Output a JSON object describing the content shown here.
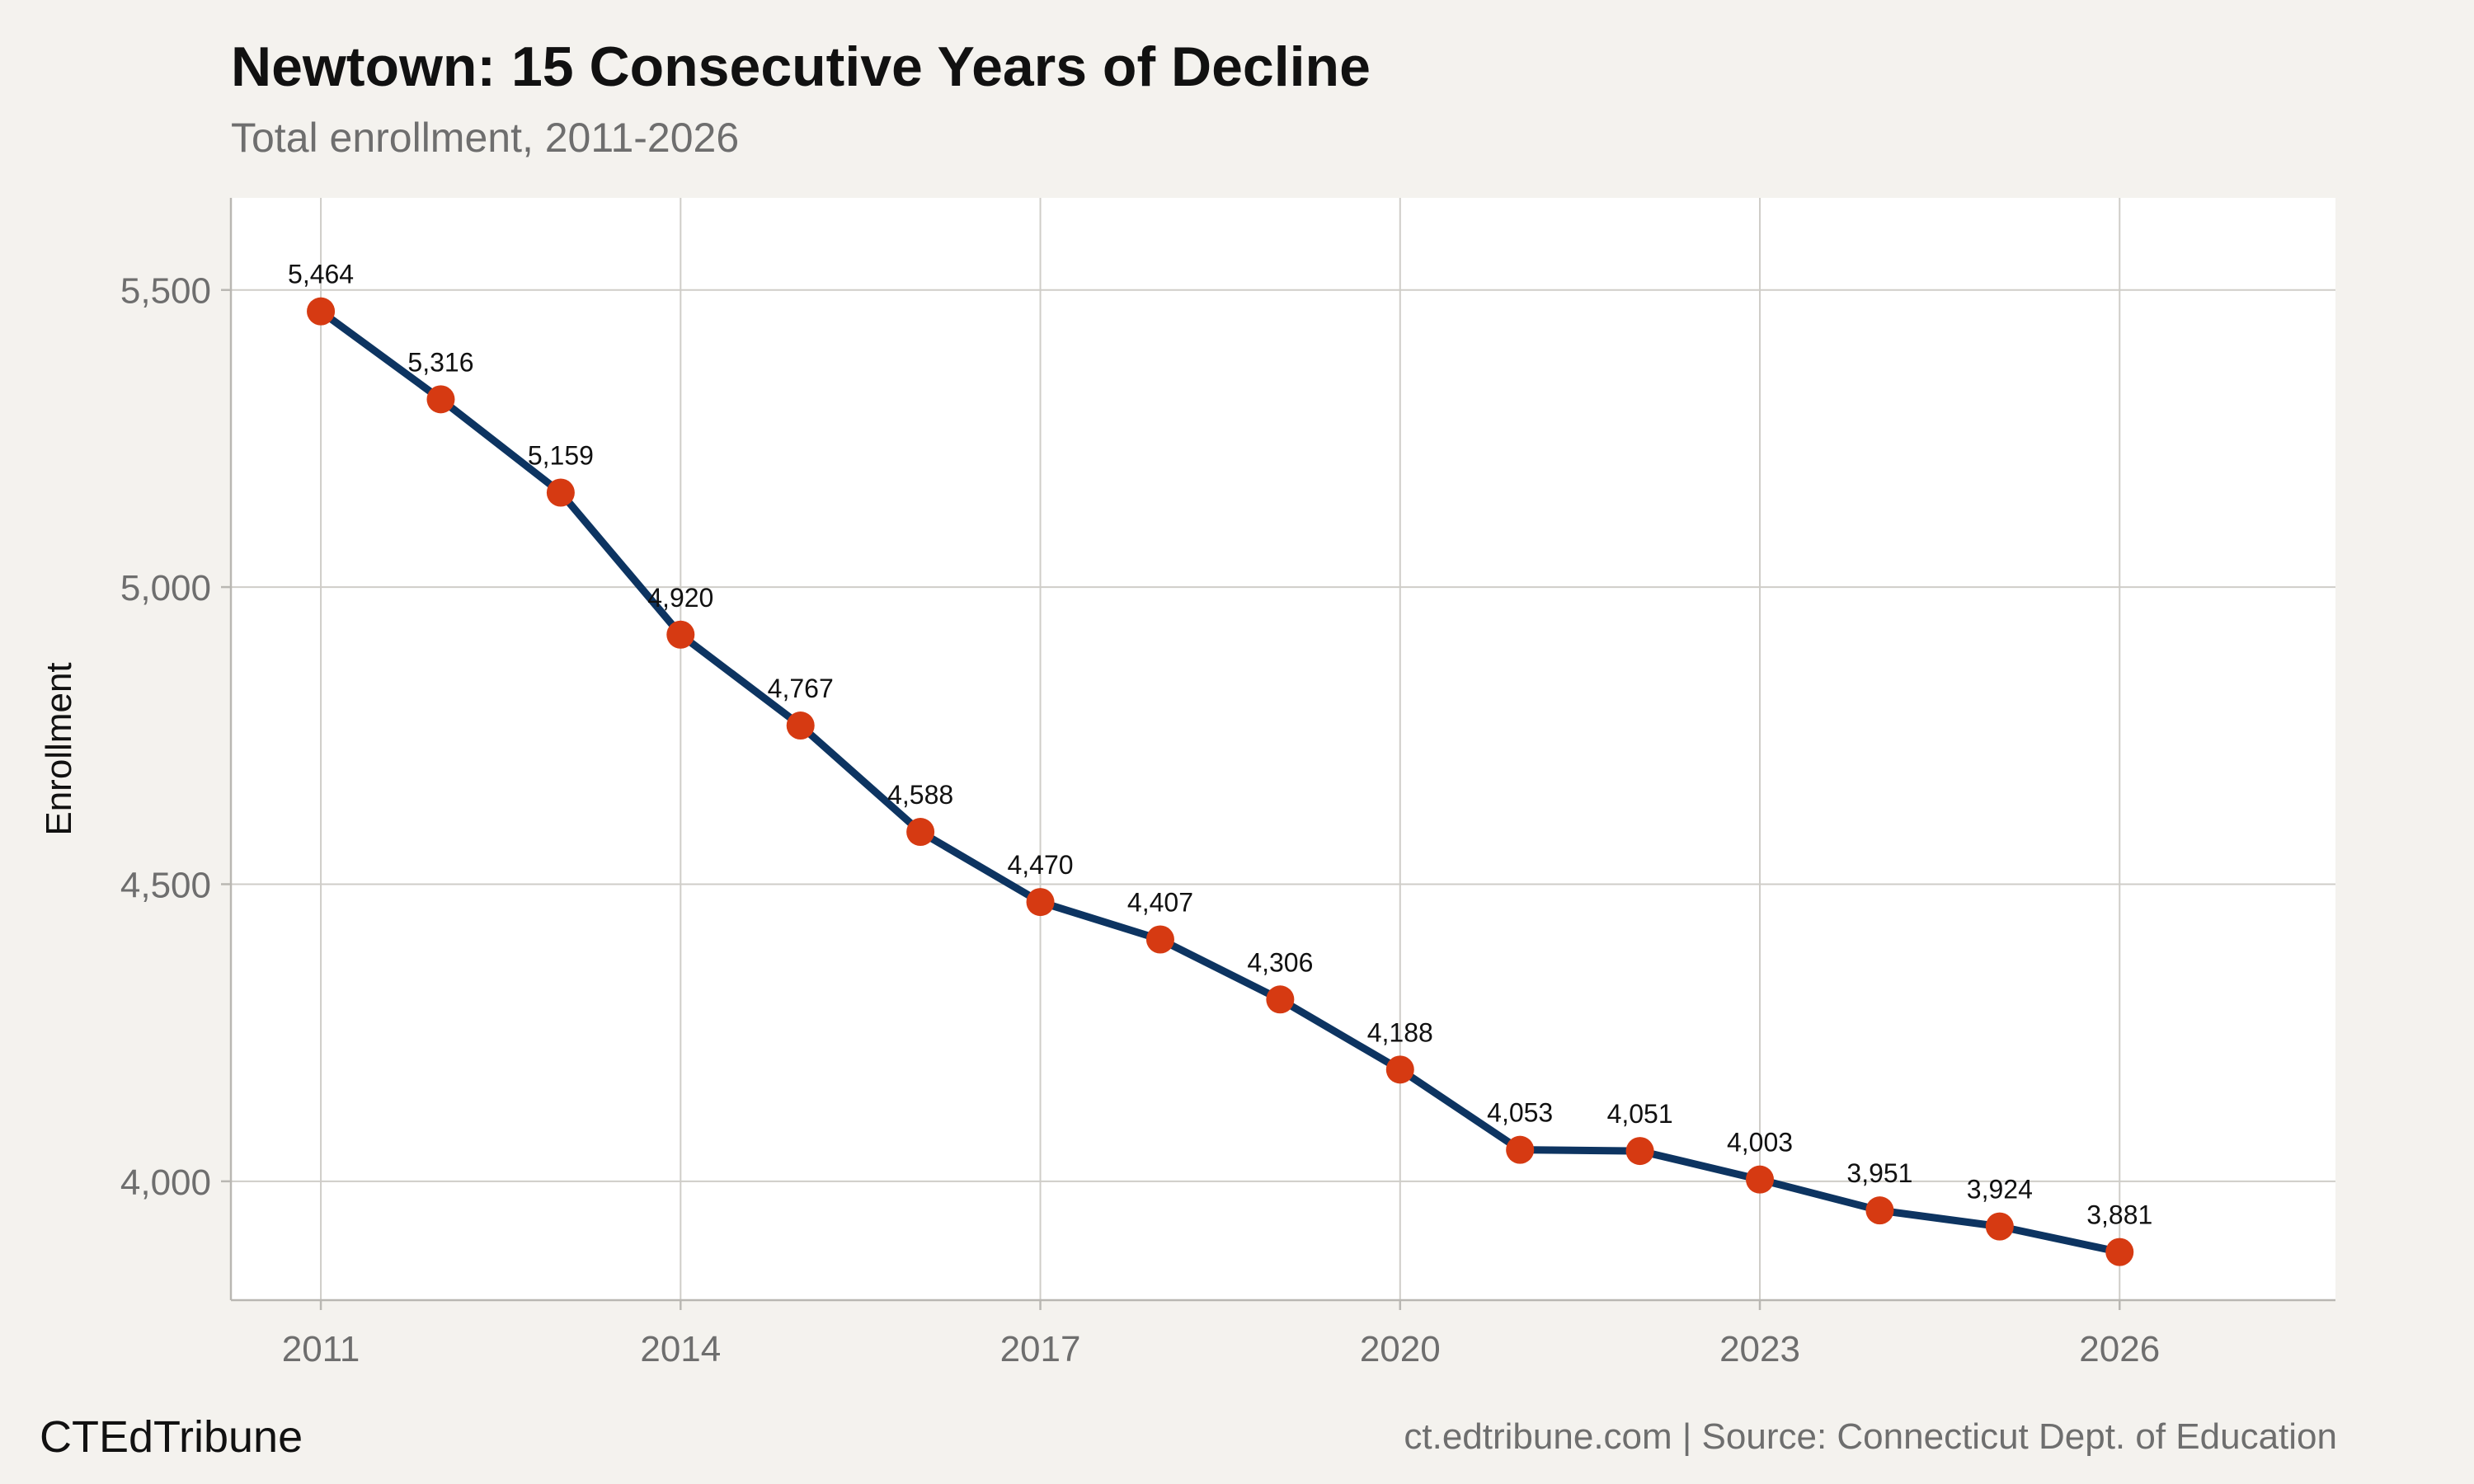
{
  "header": {
    "title": "Newtown: 15 Consecutive Years of Decline",
    "subtitle": "Total enrollment, 2011-2026"
  },
  "footer": {
    "brand": "CTEdTribune",
    "source": "ct.edtribune.com | Source: Connecticut Dept. of Education"
  },
  "colors": {
    "background": "#f4f2ee",
    "plot_background": "#ffffff",
    "grid": "#cfcdc8",
    "line": "#0d3461",
    "marker": "#d63a12"
  },
  "chart_data": {
    "type": "line",
    "title": "Newtown: 15 Consecutive Years of Decline",
    "subtitle": "Total enrollment, 2011-2026",
    "xlabel": "",
    "ylabel": "Enrollment",
    "x": [
      2011,
      2012,
      2013,
      2014,
      2015,
      2016,
      2017,
      2018,
      2019,
      2020,
      2021,
      2022,
      2023,
      2024,
      2025,
      2026
    ],
    "series": [
      {
        "values": [
          5464,
          5316,
          5159,
          4920,
          4767,
          4588,
          4470,
          4407,
          4306,
          4188,
          4053,
          4051,
          4003,
          3951,
          3924,
          3881
        ]
      }
    ],
    "data_labels": [
      "5,464",
      "5,316",
      "5,159",
      "4,920",
      "4,767",
      "4,588",
      "4,470",
      "4,407",
      "4,306",
      "4,188",
      "4,053",
      "4,051",
      "4,003",
      "3,951",
      "3,924",
      "3,881"
    ],
    "xlim": [
      2010.25,
      2027.8
    ],
    "ylim": [
      3800,
      5655
    ],
    "x_ticks": [
      2011,
      2014,
      2017,
      2020,
      2023,
      2026
    ],
    "x_tick_labels": [
      "2011",
      "2014",
      "2017",
      "2020",
      "2023",
      "2026"
    ],
    "y_ticks": [
      4000,
      4500,
      5000,
      5500
    ],
    "y_tick_labels": [
      "4,000",
      "4,500",
      "5,000",
      "5,500"
    ],
    "grid": true,
    "legend": "none"
  }
}
